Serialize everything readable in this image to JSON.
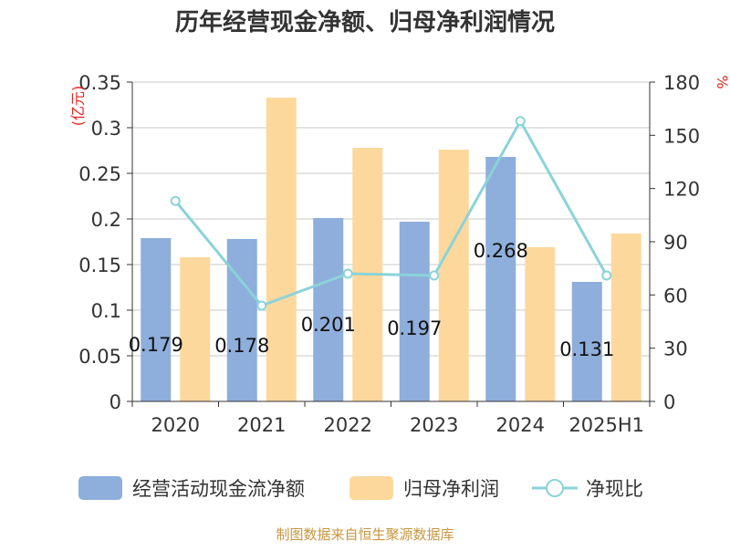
{
  "chart_data": {
    "type": "bar",
    "title": "历年经营现金净额、归母净利润情况",
    "categories": [
      "2020",
      "2021",
      "2022",
      "2023",
      "2024",
      "2025H1"
    ],
    "y_left": {
      "unit_label": "(亿元)",
      "ylim": [
        0,
        0.35
      ],
      "ticks": [
        "0",
        "0.05",
        "0.1",
        "0.15",
        "0.2",
        "0.25",
        "0.3",
        "0.35"
      ]
    },
    "y_right": {
      "unit_label": "%",
      "ylim": [
        0,
        180
      ],
      "ticks": [
        "0",
        "30",
        "60",
        "90",
        "120",
        "150",
        "180"
      ]
    },
    "grid": true,
    "legend_position": "bottom",
    "series": [
      {
        "name": "经营活动现金流净额",
        "kind": "bar",
        "axis": "left",
        "color": "#8eaedb",
        "values": [
          0.179,
          0.178,
          0.201,
          0.197,
          0.268,
          0.131
        ],
        "labels": [
          "0.179",
          "0.178",
          "0.201",
          "0.197",
          "0.268",
          "0.131"
        ]
      },
      {
        "name": "归母净利润",
        "kind": "bar",
        "axis": "left",
        "color": "#fdd89c",
        "values": [
          0.158,
          0.333,
          0.278,
          0.276,
          0.169,
          0.184
        ]
      },
      {
        "name": "净现比",
        "kind": "line",
        "axis": "right",
        "color": "#8ad3d9",
        "values": [
          113,
          54,
          72,
          71,
          158,
          71
        ]
      }
    ]
  },
  "source": "制图数据来自恒生聚源数据库"
}
